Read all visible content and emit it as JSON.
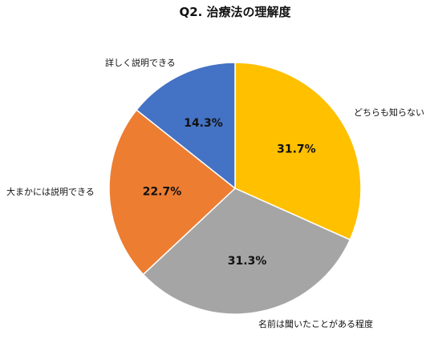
{
  "chart_data": {
    "type": "pie",
    "title": "Q2. 治療法の理解度",
    "categories": [
      "どちらも知らない",
      "名前は聞いたことがある程度",
      "大まかには説明できる",
      "詳しく説明できる"
    ],
    "values": [
      31.7,
      31.3,
      22.7,
      14.3
    ],
    "data_labels": [
      "31.7%",
      "31.3%",
      "22.7%",
      "14.3%"
    ],
    "colors": [
      "#FFC000",
      "#A5A5A5",
      "#ED7D31",
      "#4472C4"
    ],
    "start": "top, clockwise",
    "legend": "none (category labels outside slices)"
  }
}
